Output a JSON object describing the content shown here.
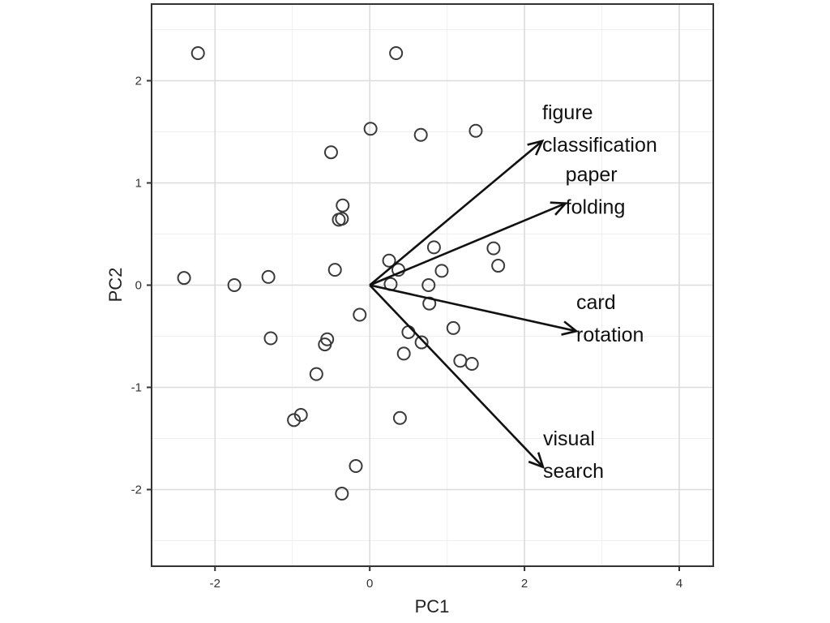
{
  "chart_data": {
    "type": "scatter",
    "title": "",
    "xlabel": "PC1",
    "ylabel": "PC2",
    "xlim": [
      -2.82,
      4.44
    ],
    "ylim": [
      -2.75,
      2.75
    ],
    "xticks": [
      -2,
      0,
      2,
      4
    ],
    "yticks": [
      -2,
      -1,
      0,
      1,
      2
    ],
    "grid": true,
    "points": [
      {
        "x": -2.22,
        "y": 2.27
      },
      {
        "x": 0.34,
        "y": 2.27
      },
      {
        "x": 0.01,
        "y": 1.53
      },
      {
        "x": 0.66,
        "y": 1.47
      },
      {
        "x": 1.37,
        "y": 1.51
      },
      {
        "x": -0.5,
        "y": 1.3
      },
      {
        "x": -0.35,
        "y": 0.78
      },
      {
        "x": -0.36,
        "y": 0.65
      },
      {
        "x": -0.4,
        "y": 0.64
      },
      {
        "x": -2.4,
        "y": 0.07
      },
      {
        "x": -1.75,
        "y": 0.0
      },
      {
        "x": -1.31,
        "y": 0.08
      },
      {
        "x": -0.45,
        "y": 0.15
      },
      {
        "x": 0.25,
        "y": 0.24
      },
      {
        "x": 0.37,
        "y": 0.15
      },
      {
        "x": 0.27,
        "y": 0.01
      },
      {
        "x": 0.83,
        "y": 0.37
      },
      {
        "x": 0.93,
        "y": 0.14
      },
      {
        "x": 1.6,
        "y": 0.36
      },
      {
        "x": 1.66,
        "y": 0.19
      },
      {
        "x": 0.76,
        "y": 0.0
      },
      {
        "x": 0.77,
        "y": -0.18
      },
      {
        "x": -0.13,
        "y": -0.29
      },
      {
        "x": 0.5,
        "y": -0.46
      },
      {
        "x": 1.08,
        "y": -0.42
      },
      {
        "x": -1.28,
        "y": -0.52
      },
      {
        "x": -0.55,
        "y": -0.53
      },
      {
        "x": -0.58,
        "y": -0.58
      },
      {
        "x": 0.67,
        "y": -0.56
      },
      {
        "x": 0.44,
        "y": -0.67
      },
      {
        "x": 1.17,
        "y": -0.74
      },
      {
        "x": 1.32,
        "y": -0.77
      },
      {
        "x": -0.69,
        "y": -0.87
      },
      {
        "x": -0.89,
        "y": -1.27
      },
      {
        "x": -0.98,
        "y": -1.32
      },
      {
        "x": 0.39,
        "y": -1.3
      },
      {
        "x": -0.18,
        "y": -1.77
      },
      {
        "x": -0.36,
        "y": -2.04
      }
    ],
    "arrows": [
      {
        "label_lines": [
          "figure",
          "classification"
        ],
        "x": 2.23,
        "y": 1.41
      },
      {
        "label_lines": [
          "paper",
          "folding"
        ],
        "x": 2.53,
        "y": 0.8
      },
      {
        "label_lines": [
          "card",
          "rotation"
        ],
        "x": 2.67,
        "y": -0.45
      },
      {
        "label_lines": [
          "visual",
          "search"
        ],
        "x": 2.24,
        "y": -1.78
      }
    ]
  }
}
